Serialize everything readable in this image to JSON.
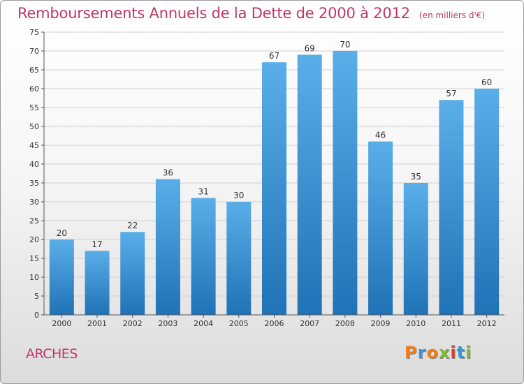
{
  "header": {
    "title": "Remboursements Annuels de la Dette de 2000 à 2012",
    "subtitle": "(en milliers d'€)"
  },
  "footer": {
    "place": "ARCHES",
    "logo_text": "Proxiti"
  },
  "colors": {
    "title": "#c0366a",
    "bar_top": "#5aaee8",
    "bar_bottom": "#1f73b6",
    "grid": "#d0d0d0",
    "logo_letters": [
      "#f07d19",
      "#3b96d8",
      "#f07d19",
      "#7cbb2f",
      "#e23c2c",
      "#3b96d8",
      "#7cbb2f"
    ]
  },
  "chart_data": {
    "type": "bar",
    "title": "Remboursements Annuels de la Dette de 2000 à 2012",
    "subtitle": "(en milliers d'€)",
    "categories": [
      "2000",
      "2001",
      "2002",
      "2003",
      "2004",
      "2005",
      "2006",
      "2007",
      "2008",
      "2009",
      "2010",
      "2011",
      "2012"
    ],
    "values": [
      20,
      17,
      22,
      36,
      31,
      30,
      67,
      69,
      70,
      46,
      35,
      57,
      60
    ],
    "ylim": [
      0,
      75
    ],
    "yticks": [
      0,
      5,
      10,
      15,
      20,
      25,
      30,
      35,
      40,
      45,
      50,
      55,
      60,
      65,
      70,
      75
    ],
    "xlabel": "",
    "ylabel": "",
    "grid": true,
    "data_labels": true
  }
}
